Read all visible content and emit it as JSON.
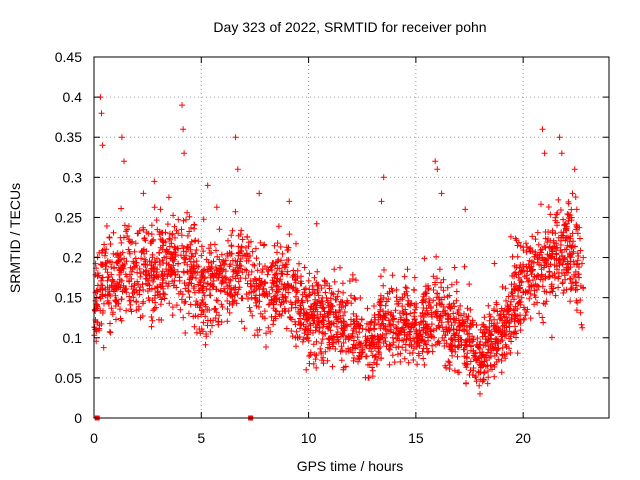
{
  "chart_data": {
    "type": "scatter",
    "title": "Day 323 of 2022, SRMTID for receiver pohn",
    "xlabel": "GPS time / hours",
    "ylabel": "SRMTID / TECUs",
    "xlim": [
      0,
      24
    ],
    "ylim": [
      0,
      0.45
    ],
    "xticks": [
      0,
      5,
      10,
      15,
      20
    ],
    "yticks": [
      0,
      0.05,
      0.1,
      0.15,
      0.2,
      0.25,
      0.3,
      0.35,
      0.4,
      0.45
    ],
    "ytick_labels": [
      "0",
      "0.05",
      "0.1",
      "0.15",
      "0.2",
      "0.25",
      "0.3",
      "0.35",
      "0.4",
      "0.45"
    ],
    "grid": true,
    "marker": "plus",
    "color": "#ff0000",
    "zero_markers_x": [
      0.15,
      7.3
    ],
    "trend": [
      [
        0.0,
        0.14
      ],
      [
        0.5,
        0.17
      ],
      [
        1.0,
        0.17
      ],
      [
        1.5,
        0.19
      ],
      [
        2.0,
        0.18
      ],
      [
        2.5,
        0.19
      ],
      [
        3.0,
        0.18
      ],
      [
        3.5,
        0.19
      ],
      [
        4.0,
        0.19
      ],
      [
        4.5,
        0.19
      ],
      [
        5.0,
        0.15
      ],
      [
        5.5,
        0.17
      ],
      [
        6.0,
        0.18
      ],
      [
        6.5,
        0.18
      ],
      [
        7.0,
        0.19
      ],
      [
        7.5,
        0.15
      ],
      [
        8.0,
        0.16
      ],
      [
        8.5,
        0.17
      ],
      [
        9.0,
        0.16
      ],
      [
        9.5,
        0.15
      ],
      [
        10.0,
        0.12
      ],
      [
        10.5,
        0.13
      ],
      [
        11.0,
        0.12
      ],
      [
        11.5,
        0.12
      ],
      [
        12.0,
        0.11
      ],
      [
        12.5,
        0.1
      ],
      [
        13.0,
        0.09
      ],
      [
        13.5,
        0.13
      ],
      [
        14.0,
        0.11
      ],
      [
        14.5,
        0.12
      ],
      [
        15.0,
        0.11
      ],
      [
        15.5,
        0.12
      ],
      [
        16.0,
        0.14
      ],
      [
        16.5,
        0.11
      ],
      [
        17.0,
        0.11
      ],
      [
        17.5,
        0.09
      ],
      [
        18.0,
        0.08
      ],
      [
        18.5,
        0.09
      ],
      [
        19.0,
        0.11
      ],
      [
        19.5,
        0.14
      ],
      [
        20.0,
        0.17
      ],
      [
        20.5,
        0.18
      ],
      [
        21.0,
        0.19
      ],
      [
        21.5,
        0.2
      ],
      [
        22.0,
        0.21
      ],
      [
        22.5,
        0.19
      ],
      [
        22.8,
        0.16
      ]
    ],
    "spikes": [
      [
        0.3,
        0.4
      ],
      [
        0.35,
        0.38
      ],
      [
        0.4,
        0.34
      ],
      [
        1.3,
        0.35
      ],
      [
        1.4,
        0.32
      ],
      [
        2.3,
        0.28
      ],
      [
        3.1,
        0.26
      ],
      [
        4.1,
        0.39
      ],
      [
        4.15,
        0.36
      ],
      [
        4.2,
        0.33
      ],
      [
        6.6,
        0.35
      ],
      [
        6.7,
        0.31
      ],
      [
        5.3,
        0.29
      ],
      [
        7.7,
        0.28
      ],
      [
        9.1,
        0.27
      ],
      [
        13.5,
        0.3
      ],
      [
        13.4,
        0.27
      ],
      [
        15.9,
        0.32
      ],
      [
        16.0,
        0.31
      ],
      [
        16.2,
        0.28
      ],
      [
        17.3,
        0.26
      ],
      [
        20.9,
        0.36
      ],
      [
        21.0,
        0.33
      ],
      [
        21.7,
        0.35
      ],
      [
        21.8,
        0.33
      ],
      [
        22.4,
        0.31
      ],
      [
        22.3,
        0.28
      ],
      [
        22.5,
        0.26
      ]
    ],
    "count": 2600
  }
}
